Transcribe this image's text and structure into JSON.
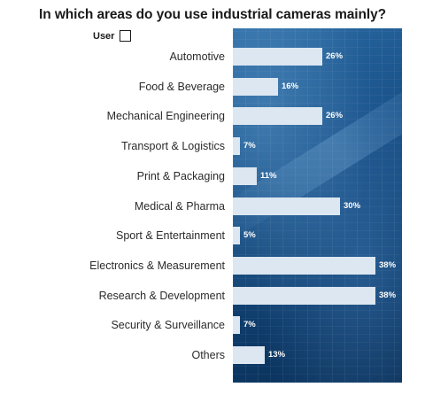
{
  "chart_data": {
    "type": "bar",
    "orientation": "horizontal",
    "title": "In which areas do you use industrial cameras mainly?",
    "legend": [
      {
        "name": "User",
        "color": "#ffffff"
      }
    ],
    "legend_position": "top-left",
    "categories": [
      "Automotive",
      "Food & Beverage",
      "Mechanical Engineering",
      "Transport & Logistics",
      "Print & Packaging",
      "Medical & Pharma",
      "Sport & Entertainment",
      "Electronics & Measurement",
      "Research & Development",
      "Security & Surveillance",
      "Others"
    ],
    "series": [
      {
        "name": "User",
        "values": [
          26,
          16,
          26,
          7,
          11,
          30,
          5,
          38,
          38,
          7,
          13
        ]
      }
    ],
    "value_labels": [
      "26%",
      "16%",
      "26%",
      "7%",
      "11%",
      "30%",
      "5%",
      "38%",
      "38%",
      "7%",
      "13%"
    ],
    "xlim": [
      0,
      38.5
    ],
    "grid": false,
    "colors": {
      "bar": "#dce7f1",
      "background": "#174f86",
      "value_text": "#ffffff"
    }
  }
}
